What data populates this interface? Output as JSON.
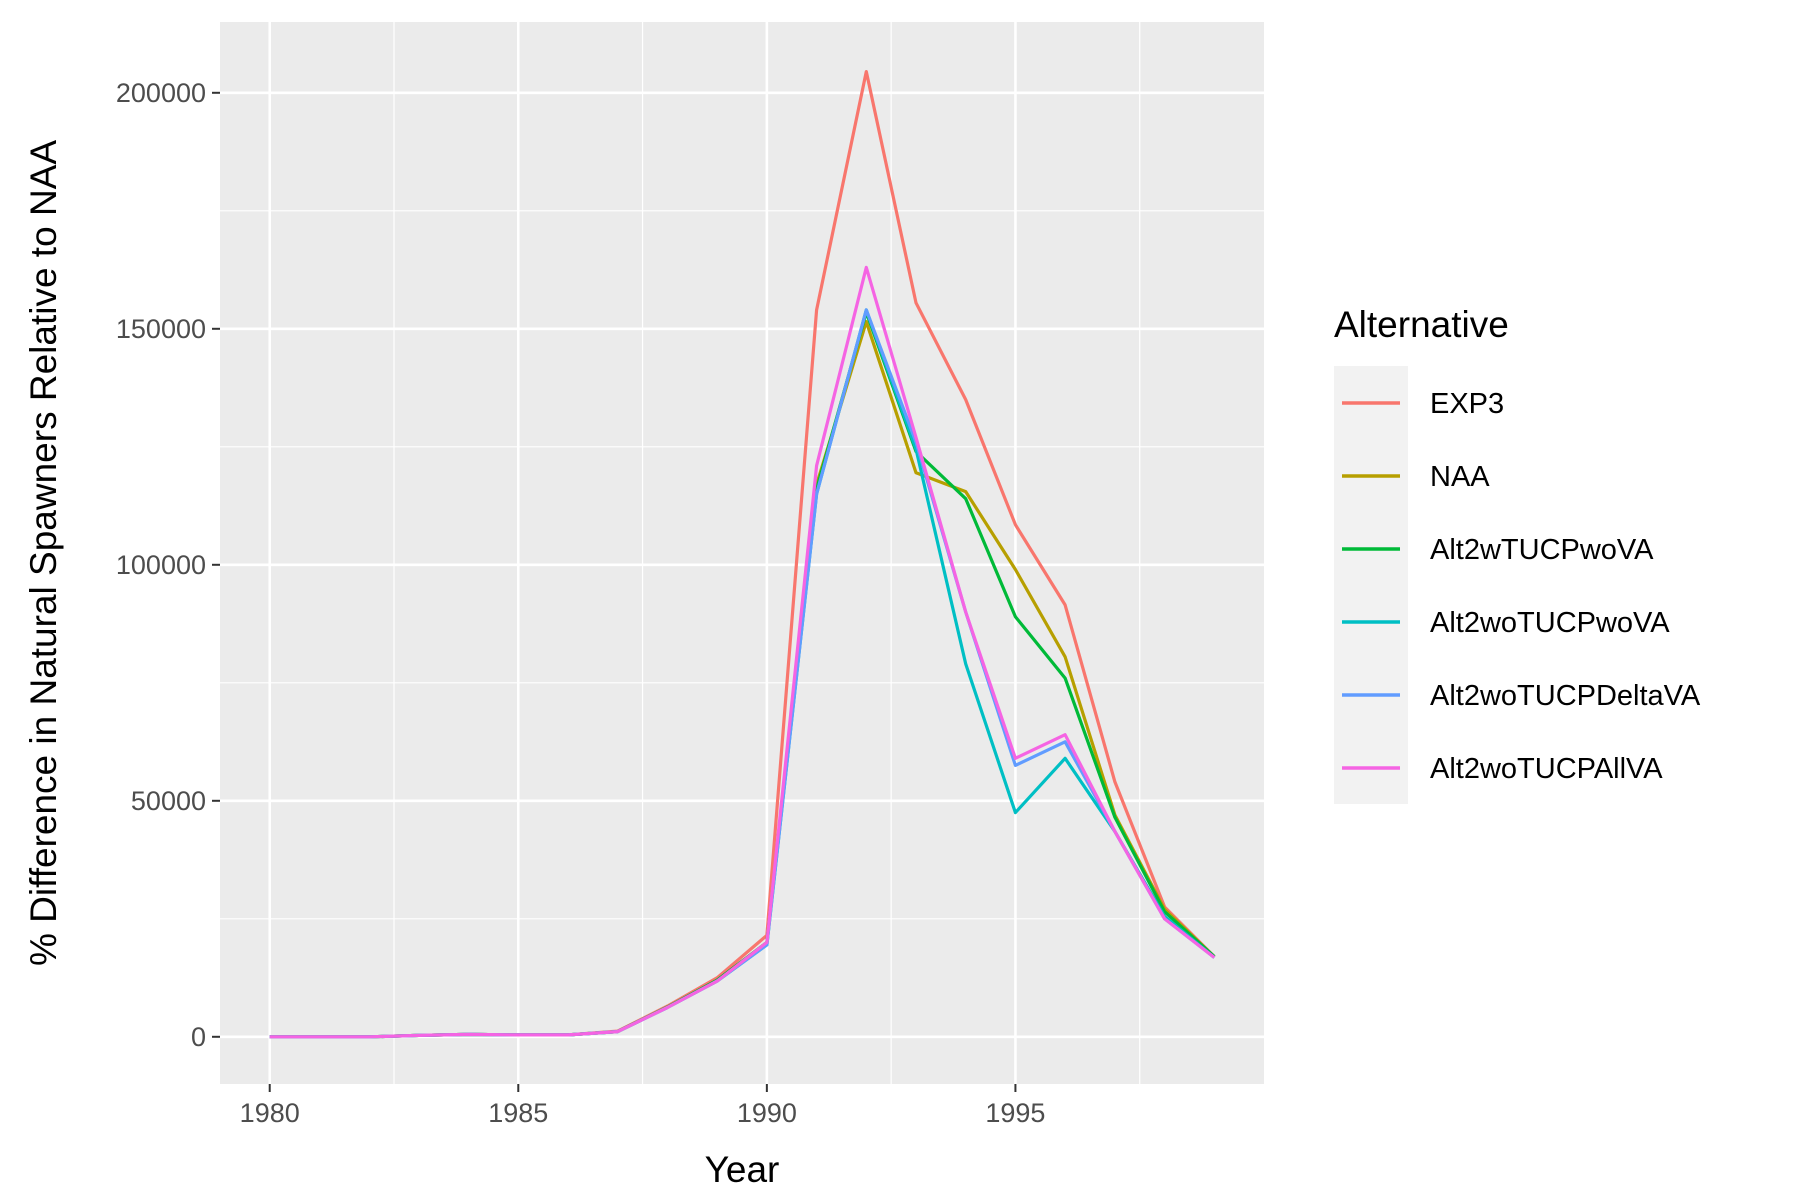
{
  "chart_data": {
    "type": "line",
    "title": "",
    "xlabel": "Year",
    "ylabel": "% Difference in Natural Spawners Relative to NAA",
    "xlim": [
      1979,
      2000
    ],
    "ylim": [
      -10000,
      215000
    ],
    "x_ticks": [
      1980,
      1985,
      1990,
      1995
    ],
    "x_tick_labels": [
      "1980",
      "1985",
      "1990",
      "1995"
    ],
    "y_ticks": [
      0,
      50000,
      100000,
      150000,
      200000
    ],
    "y_tick_labels": [
      "0",
      "50000",
      "100000",
      "150000",
      "200000"
    ],
    "grid": true,
    "background": "#ebebeb",
    "legend": {
      "title": "Alternative",
      "placement": "right"
    },
    "x": [
      1980,
      1981,
      1982,
      1983,
      1984,
      1985,
      1986,
      1987,
      1988,
      1989,
      1990,
      1991,
      1992,
      1993,
      1994,
      1995,
      1996,
      1997,
      1998,
      1999
    ],
    "series": [
      {
        "name": "EXP3",
        "color": "#F8766D",
        "values": [
          0,
          0,
          0,
          300,
          500,
          400,
          400,
          1200,
          6500,
          12500,
          21500,
          154000,
          204500,
          155500,
          135000,
          108500,
          91500,
          54000,
          27500,
          17000
        ]
      },
      {
        "name": "NAA",
        "color": "#B79F00",
        "values": [
          0,
          0,
          0,
          300,
          500,
          400,
          400,
          1100,
          6300,
          12000,
          20000,
          117000,
          151500,
          119500,
          115500,
          99000,
          80500,
          47000,
          27000,
          17000
        ]
      },
      {
        "name": "Alt2wTUCPwoVA",
        "color": "#00BA38",
        "values": [
          0,
          0,
          0,
          300,
          500,
          400,
          400,
          1100,
          6300,
          12000,
          20000,
          116000,
          153500,
          124000,
          114000,
          89000,
          76000,
          46500,
          26500,
          17000
        ]
      },
      {
        "name": "Alt2woTUCPwoVA",
        "color": "#00BFC4",
        "values": [
          0,
          0,
          0,
          300,
          500,
          400,
          400,
          1100,
          6200,
          11800,
          19500,
          115000,
          154000,
          124500,
          79000,
          47500,
          59000,
          43500,
          25500,
          16800
        ]
      },
      {
        "name": "Alt2woTUCPDeltaVA",
        "color": "#619CFF",
        "values": [
          0,
          0,
          0,
          300,
          500,
          400,
          400,
          1100,
          6200,
          11800,
          19500,
          115000,
          154000,
          126000,
          90000,
          57500,
          62500,
          43500,
          25000,
          16800
        ]
      },
      {
        "name": "Alt2woTUCPAllVA",
        "color": "#F564E3",
        "values": [
          0,
          0,
          0,
          300,
          500,
          400,
          400,
          1100,
          6200,
          11800,
          20000,
          121000,
          163000,
          127000,
          90000,
          59000,
          64000,
          43500,
          25000,
          16800
        ]
      }
    ]
  }
}
